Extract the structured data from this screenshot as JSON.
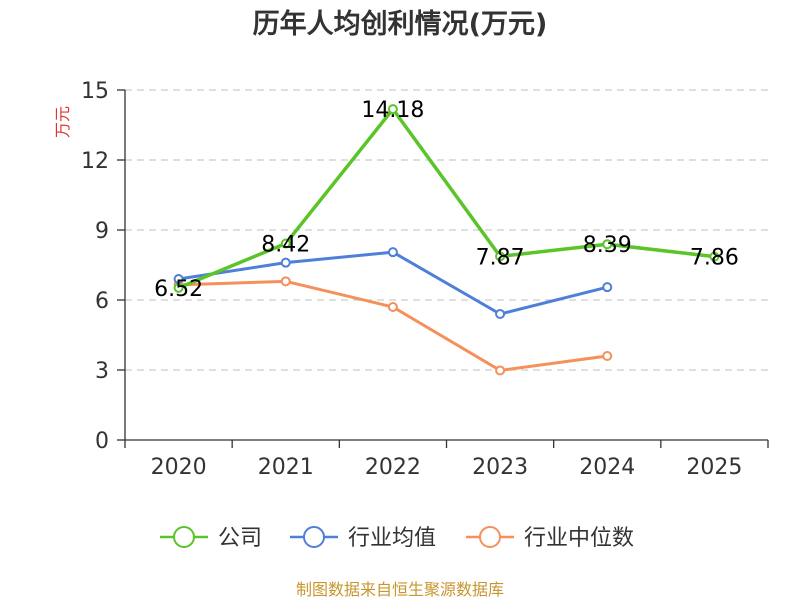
{
  "chart_data": {
    "type": "line",
    "title": "历年人均创利情况(万元)",
    "ylabel": "万元",
    "categories": [
      "2020",
      "2021",
      "2022",
      "2023",
      "2024",
      "2025"
    ],
    "ylim": [
      0,
      15
    ],
    "yticks": [
      0,
      3,
      6,
      9,
      12,
      15
    ],
    "grid": true,
    "legend_position": "bottom",
    "series": [
      {
        "name": "公司",
        "values": [
          6.52,
          8.42,
          14.18,
          7.87,
          8.39,
          7.86
        ],
        "color": "#5bc428",
        "labels": [
          "6.52",
          "8.42",
          "14.18",
          "7.87",
          "8.39",
          "7.86"
        ]
      },
      {
        "name": "行业均值",
        "values": [
          6.9,
          7.6,
          8.05,
          5.4,
          6.55,
          null
        ],
        "color": "#4e7fd9"
      },
      {
        "name": "行业中位数",
        "values": [
          6.65,
          6.8,
          5.7,
          2.98,
          3.6,
          null
        ],
        "color": "#f5905a"
      }
    ],
    "source": "制图数据来自恒生聚源数据库"
  },
  "colors": {
    "ylabel": "#e0332e",
    "source": "#c8962e",
    "grid": "#cccccc",
    "axis": "#333333"
  }
}
